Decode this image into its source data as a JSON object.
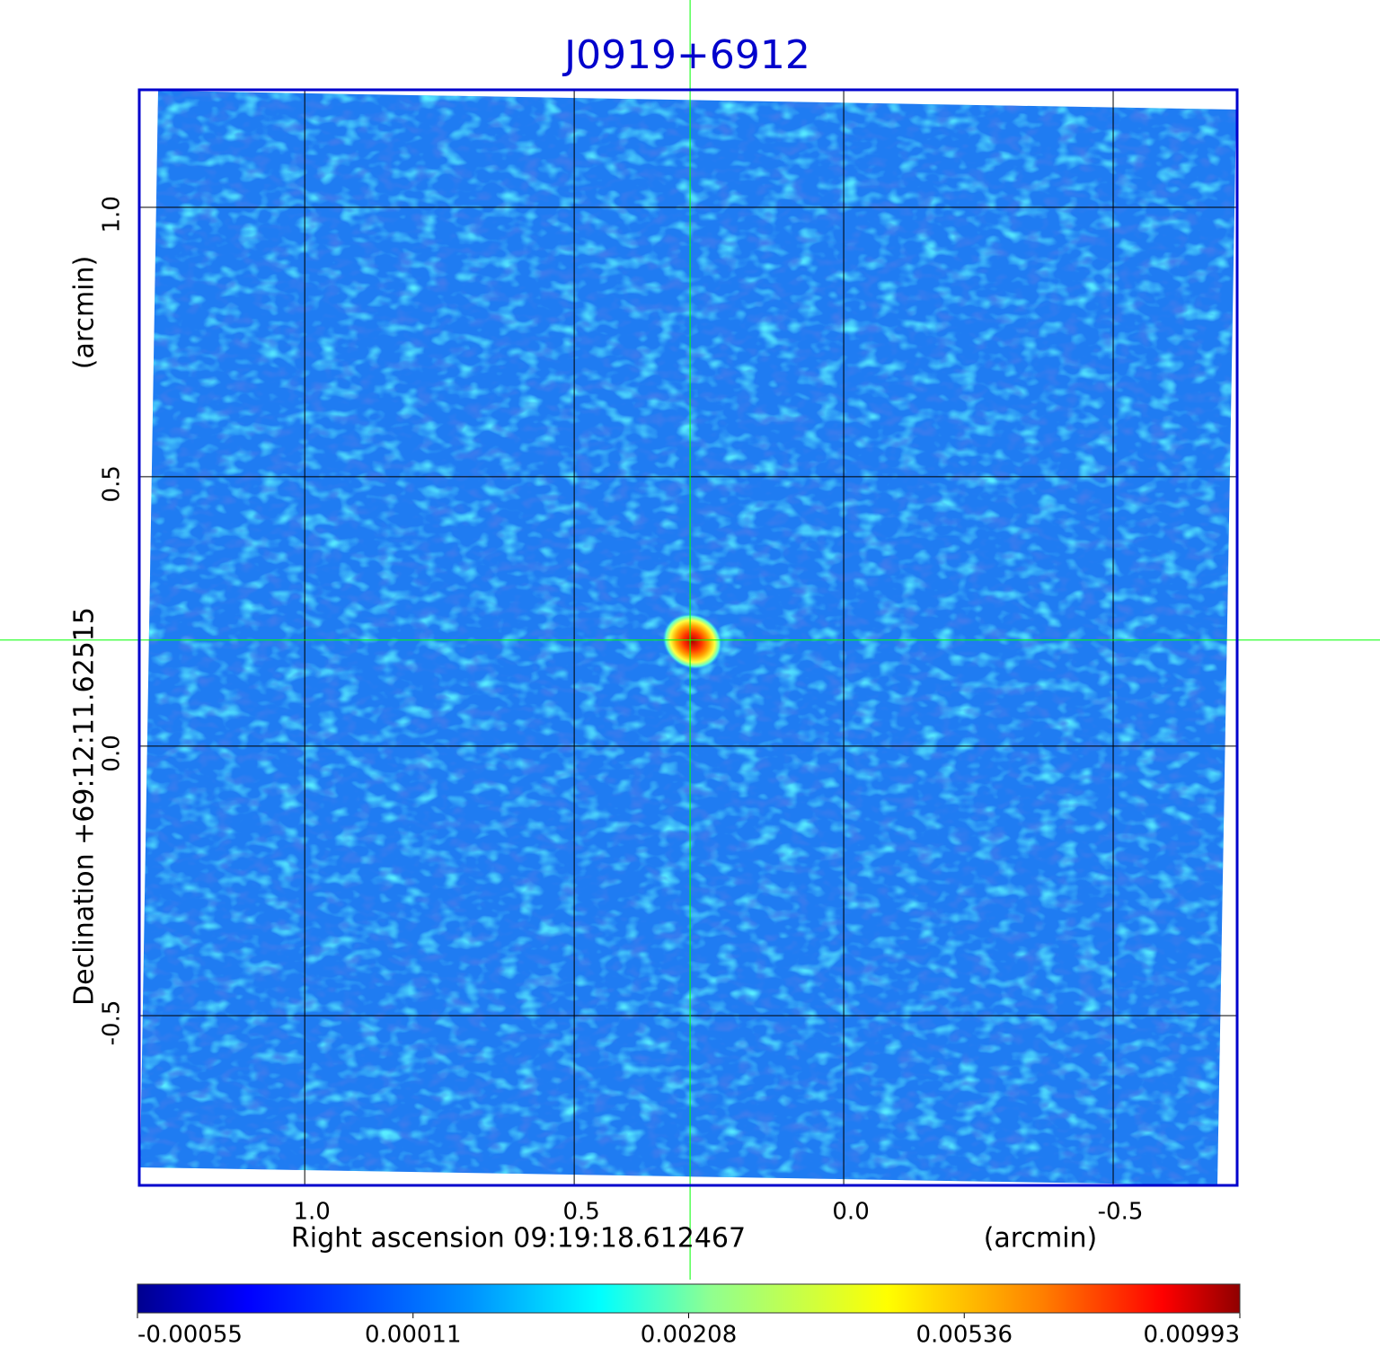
{
  "chart_data": {
    "type": "image",
    "title": "J0919+6912",
    "xlabel": "Right ascension  09:19:18.612467",
    "xunit": "(arcmin)",
    "ylabel": "Declination  +69:12:11.62515",
    "yunit": "(arcmin)",
    "xlim": [
      1.307,
      -0.73
    ],
    "ylim": [
      -0.815,
      1.218
    ],
    "xticks": [
      {
        "value": 1,
        "label": "1.0"
      },
      0.5,
      {
        "value": 0,
        "label": "0.0"
      },
      -0.5
    ],
    "yticks": [
      {
        "value": 1,
        "label": "1.0"
      },
      0.5,
      {
        "value": 0,
        "label": "0.0"
      },
      -0.5
    ],
    "grid": true,
    "crosshair": {
      "x": 0.285,
      "y": 0.197,
      "color": "#00ff00"
    },
    "colorbar_ticks": [
      -0.00055,
      0.00011,
      0.00208,
      0.00536,
      0.00993
    ],
    "frame_color": "#0000cc"
  }
}
